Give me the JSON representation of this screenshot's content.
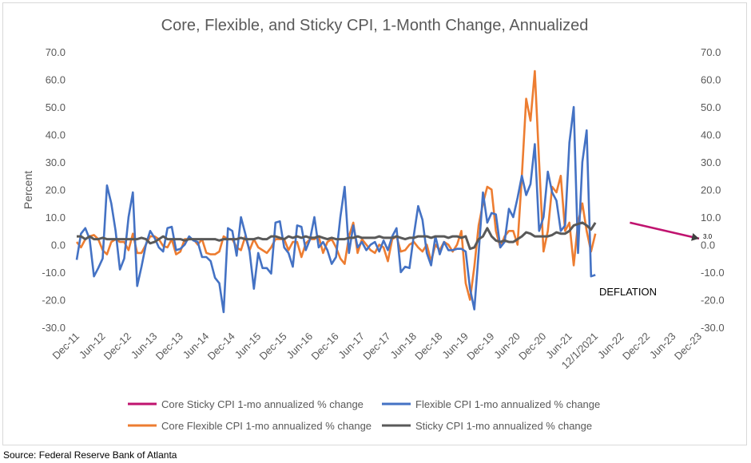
{
  "chart_data": {
    "type": "line",
    "title": "Core, Flexible, and Sticky CPI, 1-Month Change, Annualized",
    "ylabel": "Percent",
    "ylim": [
      -30,
      70
    ],
    "yticks": [
      "70.0",
      "60.0",
      "50.0",
      "40.0",
      "30.0",
      "20.0",
      "10.0",
      "0.0",
      "-10.0",
      "-20.0",
      "-30.0"
    ],
    "xlim": [
      "2011-12",
      "2023-12"
    ],
    "xticks": [
      {
        "date": "2011-12",
        "label": "Dec-11"
      },
      {
        "date": "2012-06",
        "label": "Jun-12"
      },
      {
        "date": "2012-12",
        "label": "Dec-12"
      },
      {
        "date": "2013-06",
        "label": "Jun-13"
      },
      {
        "date": "2013-12",
        "label": "Dec-13"
      },
      {
        "date": "2014-06",
        "label": "Jun-14"
      },
      {
        "date": "2014-12",
        "label": "Dec-14"
      },
      {
        "date": "2015-06",
        "label": "Jun-15"
      },
      {
        "date": "2015-12",
        "label": "Dec-15"
      },
      {
        "date": "2016-06",
        "label": "Jun-16"
      },
      {
        "date": "2016-12",
        "label": "Dec-16"
      },
      {
        "date": "2017-06",
        "label": "Jun-17"
      },
      {
        "date": "2017-12",
        "label": "Dec-17"
      },
      {
        "date": "2018-06",
        "label": "Jun-18"
      },
      {
        "date": "2018-12",
        "label": "Dec-18"
      },
      {
        "date": "2019-06",
        "label": "Jun-19"
      },
      {
        "date": "2019-12",
        "label": "Dec-19"
      },
      {
        "date": "2020-06",
        "label": "Jun-20"
      },
      {
        "date": "2020-12",
        "label": "Dec-20"
      },
      {
        "date": "2021-06",
        "label": "Jun-21"
      },
      {
        "date": "2021-12",
        "label": "12/1/2021"
      },
      {
        "date": "2022-06",
        "label": "Jun-22"
      },
      {
        "date": "2022-12",
        "label": "Dec-22"
      },
      {
        "date": "2023-06",
        "label": "Jun-23"
      },
      {
        "date": "2023-12",
        "label": "Dec-23"
      }
    ],
    "grid": false,
    "legend_position": "bottom",
    "series": [
      {
        "name": "Core Sticky CPI 1-mo annualized % change",
        "color": "#c0136f",
        "points": [
          [
            "2022-08",
            8
          ],
          [
            "2023-12",
            2.2
          ]
        ]
      },
      {
        "name": "Flexible CPI 1-mo annualized % change",
        "color": "#4472c4",
        "values": [
          -5.5,
          4,
          6,
          2,
          -11.5,
          -8.5,
          -5,
          21.5,
          15,
          5,
          -9,
          -5,
          10,
          19,
          -15,
          -8,
          0,
          5,
          2.5,
          -1,
          -2.5,
          6,
          6.5,
          -2,
          -1.5,
          0,
          3,
          1.5,
          1,
          -4.5,
          -4.5,
          -6,
          -12,
          -14,
          -24.5,
          6,
          5,
          -4,
          10,
          4,
          -2.5,
          -16,
          -3,
          -8.5,
          -8.5,
          -10.5,
          8,
          8.5,
          -1,
          -3,
          -8,
          7,
          6.5,
          -2,
          2,
          10,
          -1,
          1,
          -2,
          -7,
          -4.5,
          10,
          21,
          -3,
          7,
          -1,
          1,
          -2,
          0,
          1,
          -2.5,
          1.5,
          -2,
          3,
          6,
          -10,
          -8,
          -8.5,
          3.5,
          14,
          9,
          -3,
          -7.5,
          3,
          -3.5,
          1,
          -2,
          -2,
          -1.5,
          -1.5,
          -2.5,
          -16,
          -23.5,
          -3,
          19,
          8,
          11.5,
          11,
          -1,
          1,
          13,
          10,
          17,
          25,
          18,
          22,
          36.5,
          5,
          10,
          26.5,
          19,
          16,
          5,
          7,
          37,
          50,
          -3,
          30,
          41.5,
          -11.5,
          -11
        ]
      },
      {
        "name": "Core Flexible CPI 1-mo annualized % change",
        "color": "#ed7d31",
        "values": [
          1,
          -1,
          2,
          3,
          3.5,
          2,
          -2,
          -3.5,
          1,
          2,
          1,
          1,
          -2,
          4,
          -3,
          -3,
          0,
          3,
          3,
          2,
          -0.5,
          -1,
          2,
          -3.5,
          -2.5,
          2,
          2,
          2,
          0,
          2,
          -3,
          -3.5,
          -3.5,
          -2.5,
          3,
          2,
          2,
          -1,
          -2,
          3,
          -2,
          2,
          -1,
          -2,
          -3,
          -1,
          2,
          2,
          2,
          -2,
          1,
          1,
          -4.5,
          0.5,
          2,
          2,
          3,
          -3,
          1,
          2,
          -1,
          -5,
          -7,
          3,
          8,
          -3,
          2,
          0,
          -2,
          -3,
          0,
          -1,
          -6,
          2,
          3,
          -2.5,
          -2,
          0,
          1,
          -1,
          -2.5,
          0,
          -6,
          0,
          -2,
          1,
          0,
          -2.5,
          0,
          5,
          -14,
          -20,
          -8,
          7,
          15,
          21,
          20,
          5,
          -1,
          3,
          5,
          5,
          0,
          25,
          53,
          45,
          63,
          30,
          -2.5,
          5,
          21,
          19,
          25,
          5,
          8,
          -7.5,
          8,
          15,
          5,
          -2.5,
          4
        ]
      },
      {
        "name": "Sticky CPI 1-mo annualized % change",
        "color": "#595959",
        "values": [
          3,
          3,
          2,
          3,
          2,
          2,
          2.5,
          2,
          2,
          2,
          2,
          2,
          2,
          2,
          2,
          2.5,
          2,
          0.5,
          1,
          2,
          3,
          2,
          2,
          2,
          2,
          1.5,
          2,
          2,
          2,
          2,
          2,
          2,
          2,
          1.5,
          2,
          2,
          2,
          2,
          2.5,
          2,
          2,
          2,
          2.5,
          2,
          2,
          3,
          3,
          2.5,
          2,
          3,
          2.5,
          3,
          2.5,
          3,
          2.5,
          2.5,
          3,
          2.5,
          2,
          2.5,
          2,
          2,
          2,
          2.5,
          2.5,
          3,
          2.5,
          2.5,
          2.5,
          2.5,
          3,
          2.5,
          2.5,
          2.5,
          3,
          2.5,
          2,
          2.5,
          2.5,
          3,
          3,
          3,
          2.5,
          3,
          3,
          3,
          2.5,
          3,
          3,
          2.5,
          3,
          -1.5,
          -1,
          2,
          3,
          6,
          3,
          1.5,
          1,
          1.5,
          1,
          1,
          2,
          3,
          4.5,
          4,
          3,
          3,
          3,
          3,
          3.5,
          4.5,
          4,
          4,
          5,
          7,
          7.5,
          8,
          7,
          5.5,
          8
        ]
      }
    ],
    "annotations": [
      {
        "text": "DEFLATION"
      },
      {
        "text": "3.0"
      }
    ],
    "source": "Source: Federal Reserve Bank of Atlanta"
  }
}
